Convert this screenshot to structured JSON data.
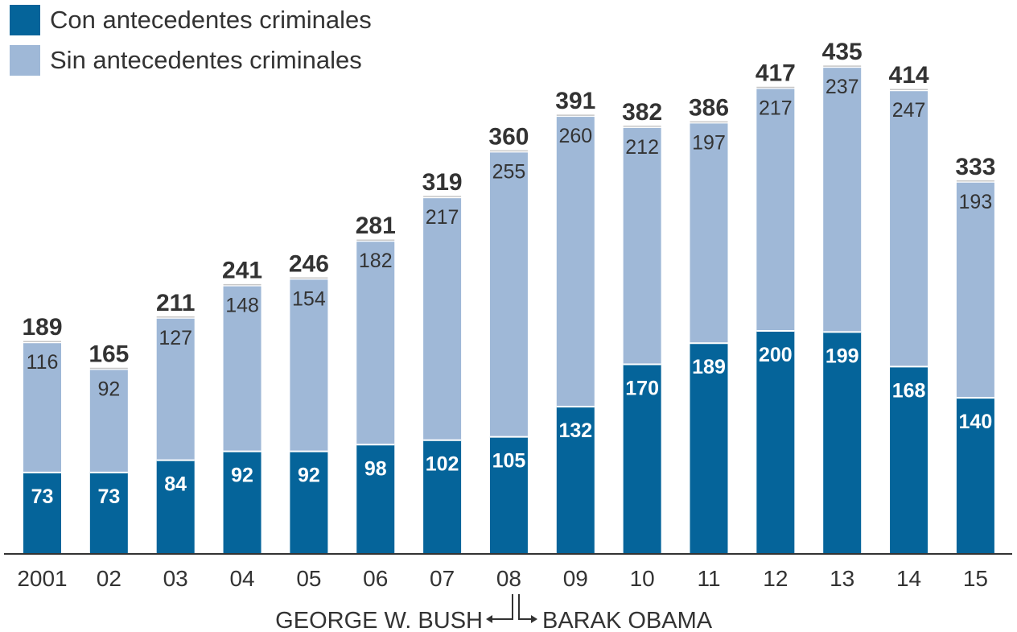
{
  "chart_data": {
    "type": "bar",
    "stacked": true,
    "categories": [
      "2001",
      "02",
      "03",
      "04",
      "05",
      "06",
      "07",
      "08",
      "09",
      "10",
      "11",
      "12",
      "13",
      "14",
      "15"
    ],
    "series": [
      {
        "name": "Con antecedentes criminales",
        "color": "#05649a",
        "values": [
          73,
          73,
          84,
          92,
          92,
          98,
          102,
          105,
          132,
          170,
          189,
          200,
          199,
          168,
          140
        ]
      },
      {
        "name": "Sin antecedentes criminales",
        "color": "#9fb8d7",
        "values": [
          116,
          92,
          127,
          148,
          154,
          182,
          217,
          255,
          260,
          212,
          197,
          217,
          237,
          247,
          193
        ]
      }
    ],
    "totals": [
      189,
      165,
      211,
      241,
      246,
      281,
      319,
      360,
      391,
      382,
      386,
      417,
      435,
      414,
      333
    ],
    "ylim": [
      0,
      450
    ],
    "grid": false,
    "legend": "top-left",
    "annotations": {
      "left": "GEORGE W. BUSH",
      "right": "BARAK OBAMA"
    }
  }
}
